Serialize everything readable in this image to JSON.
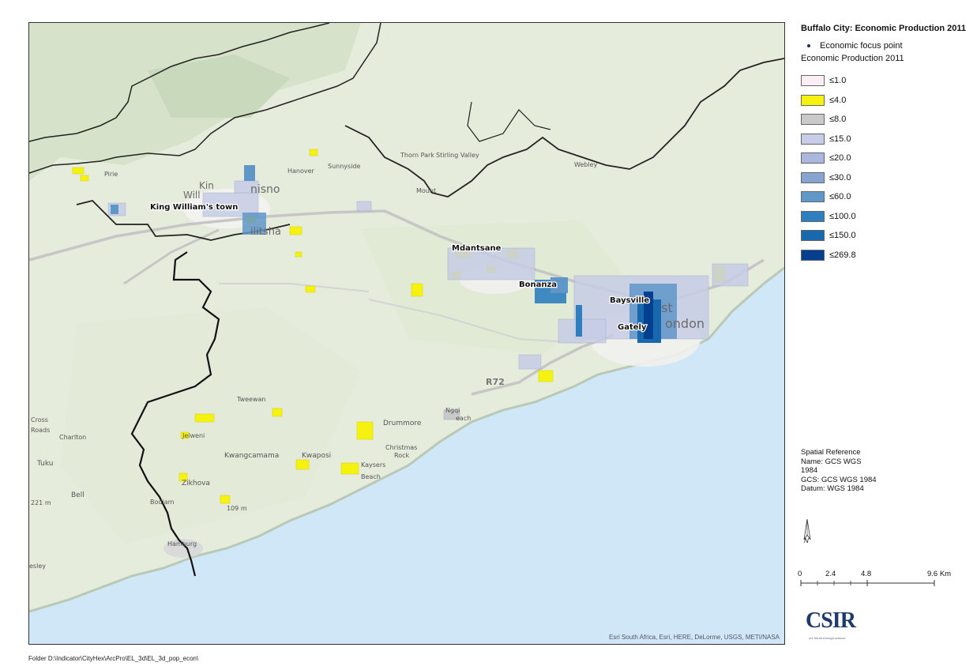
{
  "map": {
    "place_labels": [
      {
        "name": "King William's town",
        "kind": "major"
      },
      {
        "name": "Mdantsane",
        "kind": "major"
      },
      {
        "name": "Bonanza",
        "kind": "major"
      },
      {
        "name": "Baysville",
        "kind": "major"
      },
      {
        "name": "Gately",
        "kind": "major"
      },
      {
        "name": "ondon",
        "kind": "basemap-large"
      },
      {
        "name": "st",
        "kind": "basemap-large"
      },
      {
        "name": "R72",
        "kind": "road"
      },
      {
        "name": "Drummore",
        "kind": "basemap"
      },
      {
        "name": "Tweewan",
        "kind": "basemap"
      },
      {
        "name": "Kwangcamama",
        "kind": "basemap"
      },
      {
        "name": "Kwaposi",
        "kind": "basemap"
      },
      {
        "name": "Christmas",
        "kind": "basemap"
      },
      {
        "name": "Rock",
        "kind": "basemap"
      },
      {
        "name": "Kaysers",
        "kind": "basemap"
      },
      {
        "name": "Beach",
        "kind": "basemap"
      },
      {
        "name": "Ngqi",
        "kind": "basemap"
      },
      {
        "name": "each",
        "kind": "basemap"
      },
      {
        "name": "Jelweni",
        "kind": "basemap"
      },
      {
        "name": "Zikhova",
        "kind": "basemap"
      },
      {
        "name": "Charlton",
        "kind": "basemap"
      },
      {
        "name": "Tuku",
        "kind": "basemap"
      },
      {
        "name": "Bell",
        "kind": "basemap"
      },
      {
        "name": "Bodiam",
        "kind": "basemap"
      },
      {
        "name": "Hamburg",
        "kind": "basemap"
      },
      {
        "name": "esley",
        "kind": "basemap"
      },
      {
        "name": "Cross",
        "kind": "basemap"
      },
      {
        "name": "Roads",
        "kind": "basemap"
      },
      {
        "name": "221 m",
        "kind": "basemap"
      },
      {
        "name": "109 m",
        "kind": "basemap"
      },
      {
        "name": "nisno",
        "kind": "basemap-large"
      },
      {
        "name": "Will",
        "kind": "basemap-large"
      },
      {
        "name": "Kin",
        "kind": "basemap-large"
      },
      {
        "name": "ilitsha",
        "kind": "basemap-large"
      },
      {
        "name": "Hanover",
        "kind": "basemap"
      },
      {
        "name": "Sunnyside",
        "kind": "basemap"
      },
      {
        "name": "Pirie",
        "kind": "basemap"
      },
      {
        "name": "Mount",
        "kind": "basemap"
      },
      {
        "name": "Thorn Park",
        "kind": "basemap"
      },
      {
        "name": "Stirling Valley",
        "kind": "basemap"
      },
      {
        "name": "Webley",
        "kind": "basemap"
      }
    ],
    "attribution": "Esri South Africa, Esri, HERE, DeLorme, USGS, METI/NASA"
  },
  "legend": {
    "title": "Buffalo City: Economic Production 2011",
    "point_label": "Economic focus point",
    "layer_title": "Economic Production 2011",
    "classes": [
      {
        "label": "≤1.0",
        "color": "#fbeef5"
      },
      {
        "label": "≤4.0",
        "color": "#f5f20f"
      },
      {
        "label": "≤8.0",
        "color": "#c9c9c9"
      },
      {
        "label": "≤15.0",
        "color": "#c7cde6"
      },
      {
        "label": "≤20.0",
        "color": "#a9b8dc"
      },
      {
        "label": "≤30.0",
        "color": "#86a6d1"
      },
      {
        "label": "≤60.0",
        "color": "#5f97c9"
      },
      {
        "label": "≤100.0",
        "color": "#2f7fc0"
      },
      {
        "label": "≤150.0",
        "color": "#1768ad"
      },
      {
        "label": "≤269.8",
        "color": "#053f8f"
      }
    ]
  },
  "spatial_reference": {
    "heading": "Spatial Reference",
    "name_line": "Name: GCS WGS",
    "name_line2": "1984",
    "gcs_line": "GCS: GCS WGS 1984",
    "datum_line": "Datum: WGS 1984"
  },
  "north_arrow": {
    "label": "N"
  },
  "scale_bar": {
    "ticks": [
      "0",
      "2.4",
      "4.8",
      "9.6 Km"
    ]
  },
  "logo": {
    "text": "CSIR",
    "tagline": "our future through science"
  },
  "footer": {
    "path": "Folder D:\\Indicator\\CityHex\\ArcPro\\EL_3d\\EL_3d_pop_econ\\"
  },
  "colors": {
    "ocean": "#cfe7f7",
    "land": "#e8eee0",
    "boundary": "#111111"
  }
}
